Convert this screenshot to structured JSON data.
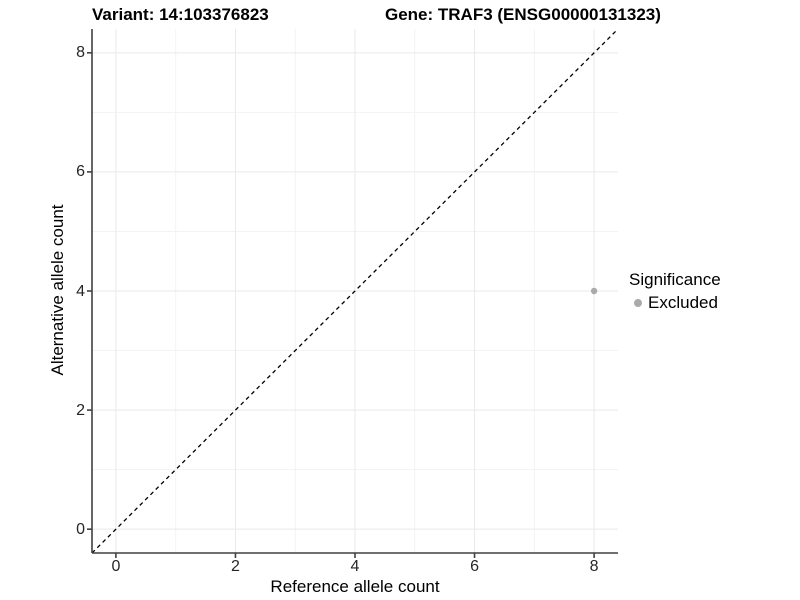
{
  "header": {
    "variant_title": "Variant: 14:103376823",
    "gene_title": "Gene: TRAF3 (ENSG00000131323)"
  },
  "legend": {
    "title": "Significance",
    "items": [
      {
        "label": "Excluded",
        "color": "#aaaaaa",
        "marker": "circle"
      }
    ]
  },
  "chart_data": {
    "type": "scatter",
    "title": "Variant: 14:103376823   Gene: TRAF3 (ENSG00000131323)",
    "xlabel": "Reference allele count",
    "ylabel": "Alternative allele count",
    "xlim": [
      -0.4,
      8.4
    ],
    "ylim": [
      -0.4,
      8.4
    ],
    "xticks": [
      0,
      2,
      4,
      6,
      8
    ],
    "yticks": [
      0,
      2,
      4,
      6,
      8
    ],
    "xminor": [
      1,
      3,
      5,
      7
    ],
    "yminor": [
      1,
      3,
      5,
      7
    ],
    "grid": "on",
    "legend_position": "right",
    "reference_line": {
      "type": "identity",
      "from": [
        -0.4,
        -0.4
      ],
      "to": [
        8.4,
        8.4
      ],
      "style": "dashed",
      "color": "#000000"
    },
    "series": [
      {
        "name": "Excluded",
        "color": "#aaaaaa",
        "points": [
          [
            8,
            4
          ]
        ]
      }
    ],
    "colors": {
      "background": "#ffffff",
      "grid_major": "#e9e9e9",
      "grid_minor": "#f3f3f3",
      "axis": "#404040",
      "tick_text": "#262626",
      "point": "#aaaaaa"
    }
  }
}
